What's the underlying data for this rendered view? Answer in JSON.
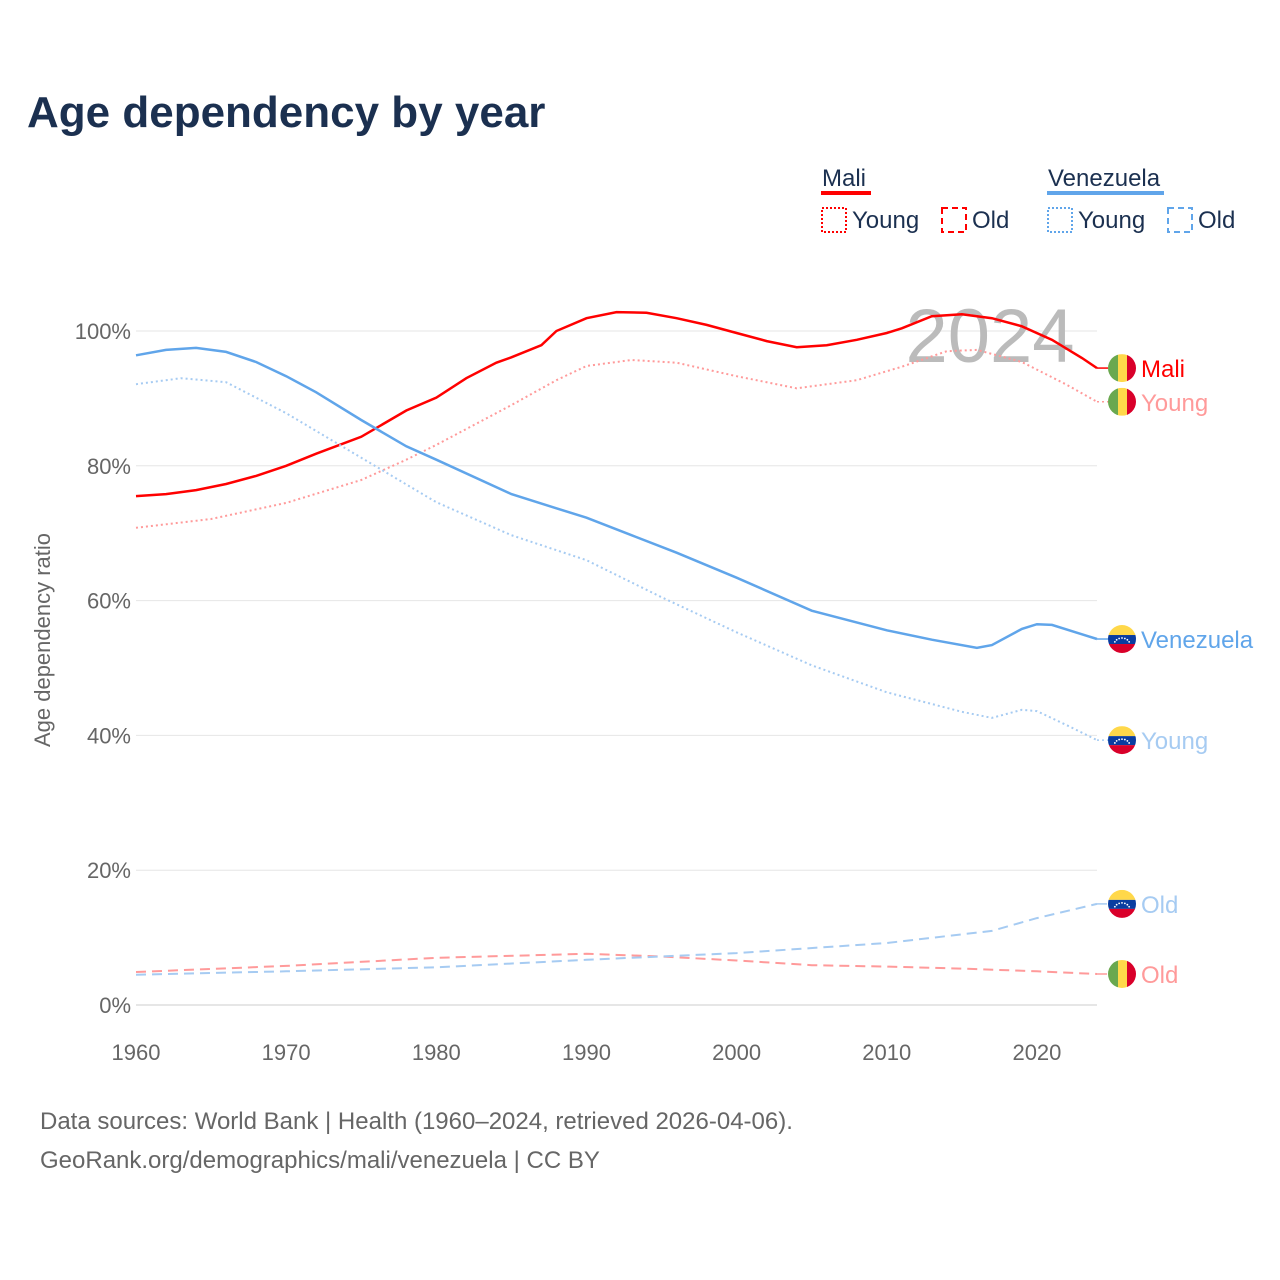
{
  "chart_data": {
    "type": "line",
    "title": "Age dependency by year",
    "ylabel": "Age dependency ratio",
    "xlabel": "",
    "xlim": [
      1960,
      2024
    ],
    "ylim": [
      0,
      100
    ],
    "xticks": [
      "1960",
      "1970",
      "1980",
      "1990",
      "2000",
      "2010",
      "2020"
    ],
    "yticks": [
      "0%",
      "20%",
      "40%",
      "60%",
      "80%",
      "100%"
    ],
    "year_label": "2024",
    "legend": {
      "groups": [
        {
          "name": "Mali",
          "color": "#ff0000",
          "items": [
            "Young",
            "Old"
          ]
        },
        {
          "name": "Venezuela",
          "color": "#60a5ea",
          "items": [
            "Young",
            "Old"
          ]
        }
      ],
      "placement": "top-right"
    },
    "series": [
      {
        "name": "Mali",
        "label": "Mali",
        "country": "mali",
        "style": "solid",
        "color": "#ff0000",
        "points": [
          [
            1960,
            75.5
          ],
          [
            1962,
            75.8
          ],
          [
            1964,
            76.4
          ],
          [
            1966,
            77.3
          ],
          [
            1968,
            78.5
          ],
          [
            1970,
            80.0
          ],
          [
            1972,
            81.8
          ],
          [
            1975,
            84.3
          ],
          [
            1978,
            88.2
          ],
          [
            1980,
            90.1
          ],
          [
            1982,
            93.0
          ],
          [
            1984,
            95.3
          ],
          [
            1985,
            96.1
          ],
          [
            1987,
            97.9
          ],
          [
            1988,
            100.0
          ],
          [
            1990,
            101.9
          ],
          [
            1992,
            102.8
          ],
          [
            1994,
            102.7
          ],
          [
            1996,
            101.9
          ],
          [
            1998,
            100.9
          ],
          [
            2000,
            99.7
          ],
          [
            2002,
            98.5
          ],
          [
            2004,
            97.6
          ],
          [
            2006,
            97.9
          ],
          [
            2008,
            98.7
          ],
          [
            2010,
            99.7
          ],
          [
            2011,
            100.4
          ],
          [
            2013,
            102.2
          ],
          [
            2015,
            102.5
          ],
          [
            2017,
            101.9
          ],
          [
            2019,
            100.7
          ],
          [
            2021,
            98.7
          ],
          [
            2023,
            96.0
          ],
          [
            2024,
            94.5
          ]
        ]
      },
      {
        "name": "Mali Young",
        "label": "Young",
        "country": "mali",
        "style": "dotted",
        "color": "#ff9a9a",
        "points": [
          [
            1960,
            70.8
          ],
          [
            1965,
            72.1
          ],
          [
            1970,
            74.5
          ],
          [
            1975,
            77.9
          ],
          [
            1978,
            80.9
          ],
          [
            1980,
            83.1
          ],
          [
            1985,
            89.0
          ],
          [
            1988,
            92.7
          ],
          [
            1990,
            94.8
          ],
          [
            1993,
            95.7
          ],
          [
            1996,
            95.3
          ],
          [
            2000,
            93.3
          ],
          [
            2004,
            91.5
          ],
          [
            2008,
            92.7
          ],
          [
            2011,
            94.7
          ],
          [
            2014,
            97.0
          ],
          [
            2016,
            97.2
          ],
          [
            2019,
            95.4
          ],
          [
            2022,
            92.0
          ],
          [
            2024,
            89.5
          ]
        ]
      },
      {
        "name": "Mali Old",
        "label": "Old",
        "country": "mali",
        "style": "dashed",
        "color": "#ff9a9a",
        "points": [
          [
            1960,
            4.9
          ],
          [
            1970,
            5.8
          ],
          [
            1980,
            7.0
          ],
          [
            1990,
            7.6
          ],
          [
            1995,
            7.2
          ],
          [
            2000,
            6.6
          ],
          [
            2005,
            5.9
          ],
          [
            2010,
            5.7
          ],
          [
            2015,
            5.4
          ],
          [
            2020,
            5.0
          ],
          [
            2024,
            4.6
          ]
        ]
      },
      {
        "name": "Venezuela",
        "label": "Venezuela",
        "country": "venezuela",
        "style": "solid",
        "color": "#60a5ea",
        "points": [
          [
            1960,
            96.4
          ],
          [
            1962,
            97.2
          ],
          [
            1964,
            97.5
          ],
          [
            1966,
            96.9
          ],
          [
            1968,
            95.4
          ],
          [
            1970,
            93.3
          ],
          [
            1972,
            90.9
          ],
          [
            1975,
            86.8
          ],
          [
            1978,
            82.9
          ],
          [
            1980,
            80.9
          ],
          [
            1985,
            75.8
          ],
          [
            1988,
            73.7
          ],
          [
            1990,
            72.3
          ],
          [
            1993,
            69.7
          ],
          [
            1996,
            67.1
          ],
          [
            2000,
            63.4
          ],
          [
            2005,
            58.5
          ],
          [
            2010,
            55.6
          ],
          [
            2013,
            54.2
          ],
          [
            2016,
            53.0
          ],
          [
            2017,
            53.4
          ],
          [
            2019,
            55.8
          ],
          [
            2020,
            56.5
          ],
          [
            2021,
            56.4
          ],
          [
            2023,
            55.0
          ],
          [
            2024,
            54.3
          ]
        ]
      },
      {
        "name": "Venezuela Young",
        "label": "Young",
        "country": "venezuela",
        "style": "dotted",
        "color": "#a6cbf2",
        "points": [
          [
            1960,
            92.1
          ],
          [
            1963,
            93.0
          ],
          [
            1966,
            92.4
          ],
          [
            1970,
            87.8
          ],
          [
            1975,
            81.2
          ],
          [
            1980,
            74.6
          ],
          [
            1985,
            69.7
          ],
          [
            1990,
            66.0
          ],
          [
            1995,
            60.5
          ],
          [
            2000,
            55.3
          ],
          [
            2005,
            50.4
          ],
          [
            2010,
            46.4
          ],
          [
            2015,
            43.5
          ],
          [
            2017,
            42.6
          ],
          [
            2019,
            43.8
          ],
          [
            2020,
            43.6
          ],
          [
            2022,
            41.5
          ],
          [
            2024,
            39.3
          ]
        ]
      },
      {
        "name": "Venezuela Old",
        "label": "Old",
        "country": "venezuela",
        "style": "dashed",
        "color": "#a6cbf2",
        "points": [
          [
            1960,
            4.5
          ],
          [
            1970,
            5.0
          ],
          [
            1980,
            5.6
          ],
          [
            1990,
            6.7
          ],
          [
            2000,
            7.7
          ],
          [
            2010,
            9.2
          ],
          [
            2017,
            11.0
          ],
          [
            2020,
            12.9
          ],
          [
            2024,
            15.0
          ]
        ]
      }
    ]
  },
  "footer": {
    "line1": "Data sources: World Bank | Health (1960–2024, retrieved 2026-04-06).",
    "line2": "GeoRank.org/demographics/mali/venezuela | CC BY"
  }
}
